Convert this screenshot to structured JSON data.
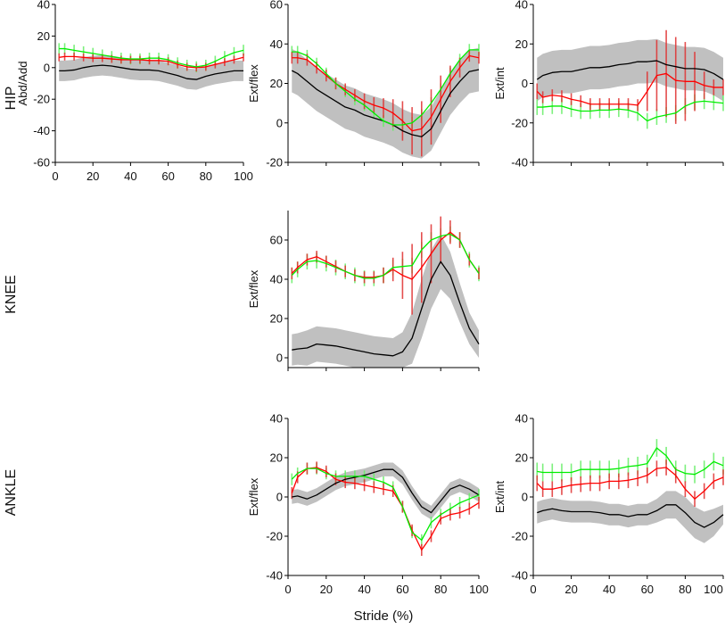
{
  "figure": {
    "row_labels": [
      "HIP",
      "KNEE",
      "ANKLE"
    ],
    "x_title": "Stride (%)",
    "colors": {
      "control_mean": "#000000",
      "control_band": "#c0c0c0",
      "red_series": "#ff0000",
      "red_bars": "#e03030",
      "green_series": "#00ee00",
      "green_bars": "#66ee66"
    }
  },
  "chart_data": [
    {
      "id": "hip-abd-add",
      "type": "line",
      "row": "HIP",
      "ylabel": "Abd/Add",
      "xlim": [
        0,
        100
      ],
      "ylim": [
        -60,
        40
      ],
      "yticks": [
        -60,
        -40,
        -20,
        0,
        20,
        40
      ],
      "xticks": [
        0,
        20,
        40,
        60,
        80,
        100
      ],
      "show_xtick_labels": true,
      "x": [
        2,
        5,
        10,
        15,
        20,
        25,
        30,
        35,
        40,
        45,
        50,
        55,
        60,
        65,
        70,
        75,
        80,
        85,
        90,
        95,
        100
      ],
      "control": {
        "mean": [
          -2,
          -2,
          -1.5,
          0,
          1,
          1.5,
          1,
          0,
          -1,
          -1.5,
          -1.5,
          -2,
          -3.5,
          -5,
          -7,
          -7.5,
          -5.5,
          -4,
          -3,
          -2,
          -2
        ],
        "sd": 6.5
      },
      "red": {
        "mean": [
          6.5,
          7,
          7,
          6.5,
          6,
          6,
          5.5,
          5,
          5,
          5,
          4.5,
          4.5,
          4,
          2,
          0.5,
          0,
          0.5,
          2,
          3.5,
          5,
          6.5
        ],
        "sd": 2.5
      },
      "green": {
        "mean": [
          12,
          12,
          11,
          10,
          9,
          8,
          7,
          6,
          5.5,
          5.5,
          6,
          6,
          5,
          3,
          1.5,
          0.5,
          1.5,
          4,
          7,
          9.5,
          11
        ],
        "sd": 3.5
      }
    },
    {
      "id": "hip-ext-flex",
      "type": "line",
      "row": "HIP",
      "ylabel": "Ext/flex",
      "xlim": [
        0,
        100
      ],
      "ylim": [
        -20,
        60
      ],
      "yticks": [
        -20,
        0,
        20,
        40,
        60
      ],
      "xticks": [
        0,
        20,
        40,
        60,
        80,
        100
      ],
      "show_xtick_labels": false,
      "x": [
        2,
        5,
        10,
        15,
        20,
        25,
        30,
        35,
        40,
        45,
        50,
        55,
        60,
        65,
        70,
        75,
        80,
        85,
        90,
        95,
        100
      ],
      "control": {
        "mean": [
          26.5,
          25,
          21,
          17,
          14,
          11,
          8,
          6.5,
          4,
          2.5,
          1,
          -1,
          -4,
          -6,
          -7,
          -3,
          6,
          15,
          21,
          26,
          27
        ],
        "sd": 11
      },
      "red": {
        "mean": [
          33,
          33,
          32,
          28,
          24,
          20,
          17,
          14,
          11,
          9,
          7.5,
          5,
          1,
          -4,
          -3,
          3,
          12,
          21,
          28,
          34,
          33
        ],
        "sd": [
          3,
          3,
          3,
          3,
          3,
          3,
          3,
          3,
          4,
          4,
          5,
          7,
          10,
          12,
          14,
          14,
          12,
          8,
          5,
          3,
          3
        ]
      },
      "green": {
        "mean": [
          36,
          36,
          34,
          30,
          25,
          20,
          16,
          12,
          9,
          5,
          1,
          -1,
          -1,
          0,
          4,
          10,
          17,
          25,
          32,
          37,
          37
        ],
        "sd": 3
      }
    },
    {
      "id": "hip-ext-int",
      "type": "line",
      "row": "HIP",
      "ylabel": "Ext/int",
      "xlim": [
        0,
        100
      ],
      "ylim": [
        -40,
        40
      ],
      "yticks": [
        -40,
        -20,
        0,
        20,
        40
      ],
      "xticks": [
        0,
        20,
        40,
        60,
        80,
        100
      ],
      "show_xtick_labels": false,
      "x": [
        2,
        5,
        10,
        15,
        20,
        25,
        30,
        35,
        40,
        45,
        50,
        55,
        60,
        65,
        70,
        75,
        80,
        85,
        90,
        95,
        100
      ],
      "control": {
        "mean": [
          2,
          4,
          5.5,
          6,
          6,
          7,
          8,
          8,
          8.5,
          9.5,
          10,
          11,
          11,
          11.5,
          9.5,
          8.5,
          7.5,
          7.5,
          7,
          5,
          2
        ],
        "sd": 11
      },
      "red": {
        "mean": [
          -4,
          -7,
          -6,
          -6.5,
          -8,
          -9,
          -10.5,
          -10.5,
          -10.5,
          -10.5,
          -10.5,
          -11,
          -4,
          4,
          5,
          1.5,
          1,
          1,
          -1,
          -2,
          -2
        ],
        "sd": [
          4,
          3,
          3,
          3,
          3,
          3,
          3,
          3,
          3,
          3,
          3,
          3,
          10,
          18,
          22,
          22,
          20,
          15,
          7,
          4,
          4
        ]
      },
      "green": {
        "mean": [
          -12,
          -12,
          -11.5,
          -11.5,
          -13,
          -14,
          -14,
          -13.5,
          -13.5,
          -13,
          -13.5,
          -15,
          -19,
          -17,
          -16,
          -15,
          -11.5,
          -9.5,
          -9,
          -9.5,
          -10
        ],
        "sd": 4
      }
    },
    {
      "id": "knee-ext-flex",
      "type": "line",
      "row": "KNEE",
      "ylabel": "Ext/flex",
      "xlim": [
        0,
        100
      ],
      "ylim": [
        -5,
        75
      ],
      "yticks": [
        0,
        20,
        40,
        60
      ],
      "xticks": [
        0,
        20,
        40,
        60,
        80,
        100
      ],
      "show_xtick_labels": false,
      "x": [
        2,
        5,
        10,
        15,
        20,
        25,
        30,
        35,
        40,
        45,
        50,
        55,
        60,
        65,
        70,
        75,
        80,
        85,
        90,
        95,
        100
      ],
      "control": {
        "mean": [
          4,
          4.5,
          5,
          7,
          6.5,
          6,
          5,
          4,
          3,
          2,
          1.5,
          1,
          3,
          10,
          25,
          40,
          49,
          42,
          28,
          15,
          7
        ],
        "sd": [
          8,
          8,
          9,
          9,
          9,
          9,
          9,
          9,
          9,
          9,
          9,
          9,
          10,
          13,
          15,
          15,
          14,
          12,
          10,
          8,
          7
        ]
      },
      "red": {
        "mean": [
          43,
          46,
          50,
          51.5,
          49,
          46.5,
          44,
          42,
          41,
          41,
          42,
          45,
          42,
          40,
          46,
          53,
          60,
          64,
          60,
          50,
          43
        ],
        "sd": [
          3,
          3,
          3,
          3,
          3,
          3,
          3,
          3,
          3,
          3,
          4,
          6,
          12,
          18,
          18,
          15,
          12,
          6,
          4,
          3,
          3
        ]
      },
      "green": {
        "mean": [
          42,
          45,
          49,
          49.5,
          48,
          46,
          44,
          42,
          40.5,
          40.5,
          42,
          46,
          46.5,
          47,
          55,
          60,
          62,
          63,
          60,
          50,
          43
        ],
        "sd": 4
      }
    },
    {
      "id": "ankle-ext-flex",
      "type": "line",
      "row": "ANKLE",
      "ylabel": "Ext/flex",
      "xlim": [
        0,
        100
      ],
      "ylim": [
        -40,
        40
      ],
      "yticks": [
        -40,
        -20,
        0,
        20,
        40
      ],
      "xticks": [
        0,
        20,
        40,
        60,
        80,
        100
      ],
      "show_xtick_labels": true,
      "x": [
        2,
        5,
        10,
        15,
        20,
        25,
        30,
        35,
        40,
        45,
        50,
        55,
        60,
        65,
        70,
        75,
        80,
        85,
        90,
        95,
        100
      ],
      "control": {
        "mean": [
          0,
          0.5,
          -1,
          1,
          4,
          7,
          9,
          10,
          11,
          12.5,
          14,
          14,
          10,
          2,
          -5,
          -8,
          -2,
          4,
          6,
          4,
          1
        ],
        "sd": 3.5
      },
      "red": {
        "mean": [
          2,
          10,
          14.5,
          15,
          13,
          9,
          7.5,
          7,
          6,
          5,
          4,
          3,
          -5,
          -17,
          -27,
          -20,
          -11,
          -9,
          -8,
          -6,
          -3
        ],
        "sd": 3
      },
      "green": {
        "mean": [
          9,
          12,
          14.5,
          14.5,
          12,
          10.5,
          10.5,
          10.5,
          10.5,
          9,
          7.5,
          5,
          -5,
          -18,
          -22,
          -13,
          -9,
          -6,
          -3,
          -1,
          1
        ],
        "sd": 3
      }
    },
    {
      "id": "ankle-ext-int",
      "type": "line",
      "row": "ANKLE",
      "ylabel": "Ext/int",
      "xlim": [
        0,
        100
      ],
      "ylim": [
        -40,
        40
      ],
      "yticks": [
        -40,
        -20,
        0,
        20,
        40
      ],
      "xticks": [
        0,
        20,
        40,
        60,
        80,
        100
      ],
      "show_xtick_labels": true,
      "x": [
        2,
        5,
        10,
        15,
        20,
        25,
        30,
        35,
        40,
        45,
        50,
        55,
        60,
        65,
        70,
        75,
        80,
        85,
        90,
        95,
        100
      ],
      "control": {
        "mean": [
          -8,
          -7,
          -6,
          -7,
          -7.5,
          -7.5,
          -7.5,
          -8,
          -9,
          -9,
          -10,
          -9,
          -9,
          -7,
          -4,
          -4,
          -8,
          -13,
          -15.5,
          -13,
          -9
        ],
        "sd": [
          5.5,
          5.5,
          5.5,
          5.5,
          5.5,
          5.5,
          5.5,
          5.5,
          5.5,
          5.5,
          5.5,
          5.5,
          5.5,
          6,
          7,
          7,
          8,
          8,
          8,
          7,
          5
        ]
      },
      "red": {
        "mean": [
          7,
          4,
          4,
          5,
          6,
          6.5,
          7,
          7,
          8,
          8,
          8.5,
          9.5,
          11,
          14.5,
          15,
          11,
          4,
          -1,
          3,
          8,
          10
        ],
        "sd": 4
      },
      "green": {
        "mean": [
          13,
          12.5,
          12.5,
          12.5,
          12.5,
          14,
          14,
          14,
          14,
          14.5,
          15.5,
          16,
          17,
          25,
          21,
          14,
          12,
          11.5,
          14,
          18,
          16
        ],
        "sd": 4.5
      }
    }
  ]
}
